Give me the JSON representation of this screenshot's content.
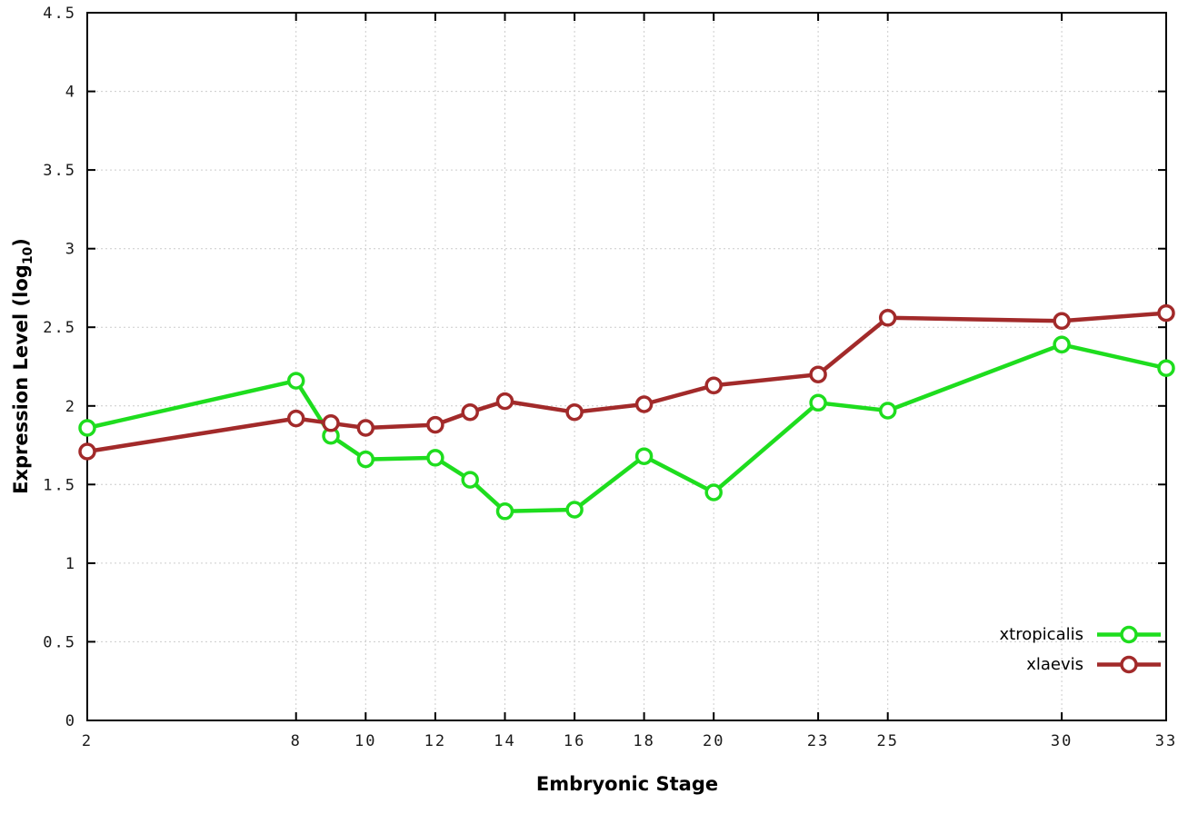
{
  "chart_data": {
    "type": "line",
    "title": "",
    "xlabel": "Embryonic Stage",
    "ylabel": "Expression Level (log10)",
    "ylabel_prefix": "Expression Level (log",
    "ylabel_sub": "10",
    "ylabel_suffix": ")",
    "xlim": [
      2,
      33
    ],
    "ylim": [
      0,
      4.5
    ],
    "grid": true,
    "legend_position": "bottom-right",
    "marker": "open-circle",
    "x_ticks": [
      2,
      8,
      10,
      12,
      14,
      16,
      18,
      20,
      23,
      25,
      30,
      33
    ],
    "x_tick_labels": [
      "2",
      "8",
      "10",
      "12",
      "14",
      "16",
      "18",
      "20",
      "23",
      "25",
      "30",
      "33"
    ],
    "y_ticks": [
      0,
      0.5,
      1,
      1.5,
      2,
      2.5,
      3,
      3.5,
      4,
      4.5
    ],
    "y_tick_labels": [
      "0",
      "0.5",
      "1",
      "1.5",
      "2",
      "2.5",
      "3",
      "3.5",
      "4",
      "4.5"
    ],
    "x": [
      2,
      8,
      9,
      10,
      12,
      13,
      14,
      16,
      18,
      20,
      23,
      25,
      30,
      33
    ],
    "series": [
      {
        "name": "xtropicalis",
        "color": "#1edd1e",
        "marker": "open-circle",
        "values": [
          1.86,
          2.16,
          1.81,
          1.66,
          1.67,
          1.53,
          1.33,
          1.34,
          1.68,
          1.45,
          2.02,
          1.97,
          2.39,
          2.24
        ]
      },
      {
        "name": "xlaevis",
        "color": "#a22a2a",
        "marker": "open-circle",
        "values": [
          1.71,
          1.92,
          1.89,
          1.86,
          1.88,
          1.96,
          2.03,
          1.96,
          2.01,
          2.13,
          2.2,
          2.56,
          2.54,
          2.59
        ]
      }
    ]
  }
}
